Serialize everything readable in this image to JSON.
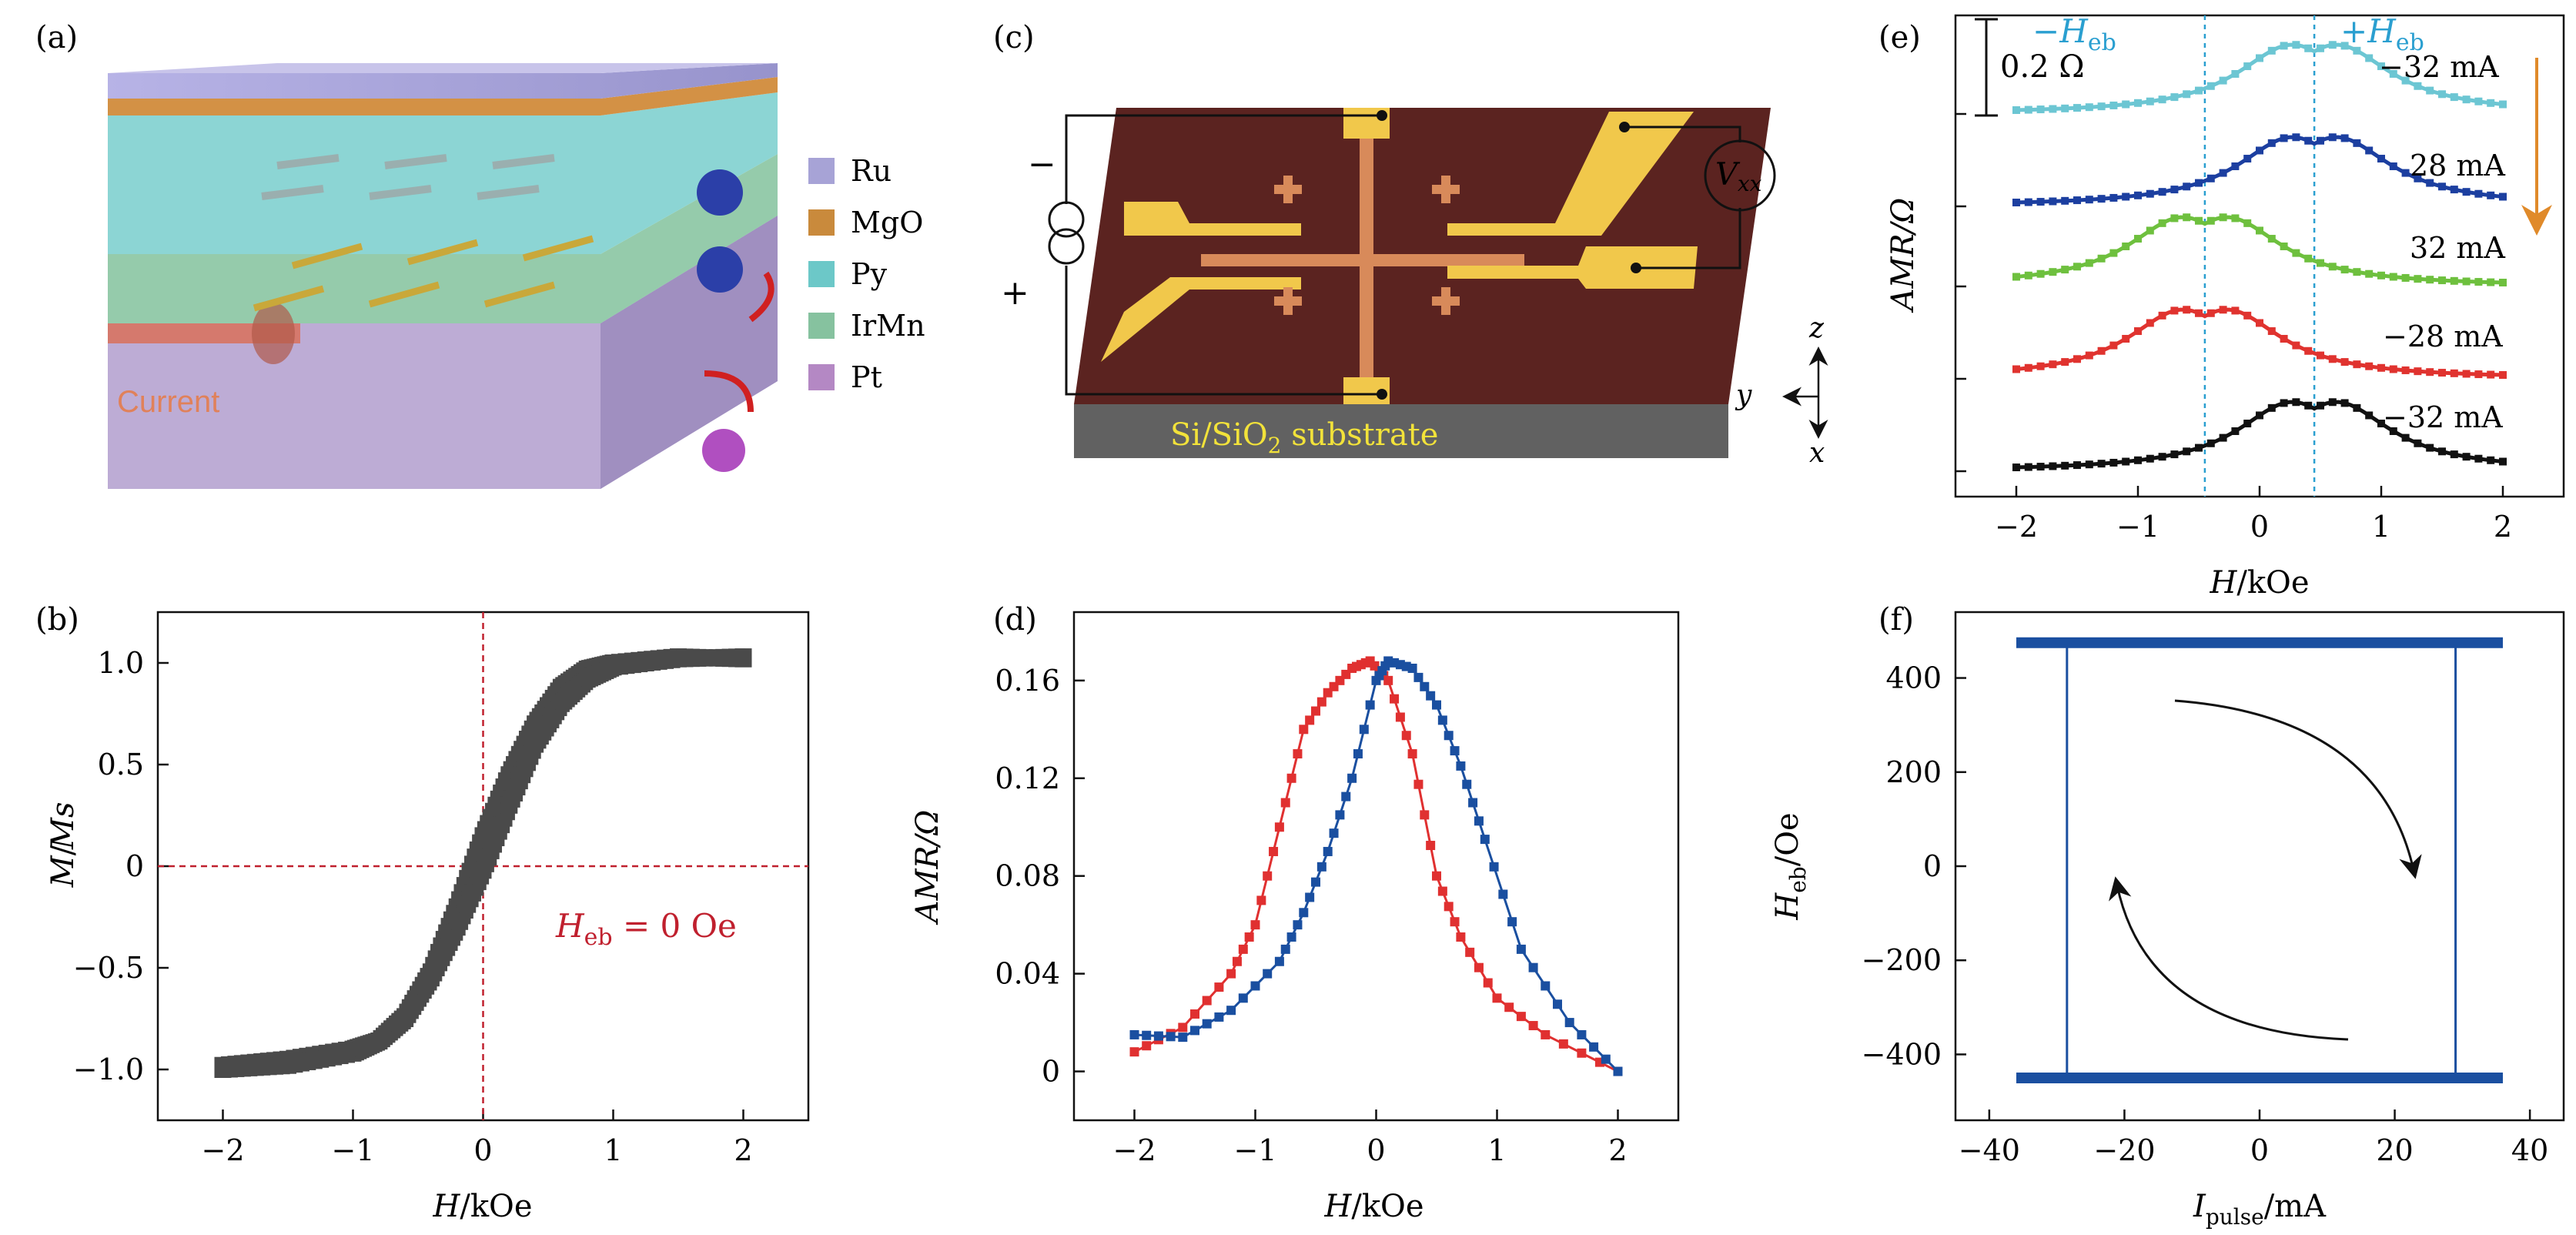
{
  "panels": {
    "a": {
      "label": "(a)",
      "legend": [
        "Ru",
        "MgO",
        "Py",
        "IrMn",
        "Pt"
      ],
      "legend_colors": [
        "#a7a3d6",
        "#c98a3c",
        "#6cc8c8",
        "#86c29f",
        "#b488c4"
      ],
      "current_label": "Current"
    },
    "b": {
      "label": "(b)",
      "annotation_prefix": "H",
      "annotation_sub": "eb",
      "annotation_rest": " = 0 Oe"
    },
    "c": {
      "label": "(c)",
      "substrate_prefix": "Si/SiO",
      "substrate_sub": "2",
      "substrate_rest": " substrate",
      "voltmeter_main": "V",
      "voltmeter_sub": "xx",
      "minus_sign": "−",
      "plus_sign": "+",
      "axis_z": "z",
      "axis_y": "y",
      "axis_x": "x"
    },
    "d": {
      "label": "(d)"
    },
    "e": {
      "label": "(e)",
      "scale_bar": "0.2 Ω",
      "neg_heb_prefix": "−H",
      "pos_heb_prefix": "+H",
      "heb_sub": "eb"
    },
    "f": {
      "label": "(f)"
    }
  },
  "chart_data": [
    {
      "id": "b",
      "type": "scatter",
      "xlabel": "H/kOe",
      "ylabel": "M/Ms",
      "xlim": [
        -2.5,
        2.5
      ],
      "ylim": [
        -1.25,
        1.25
      ],
      "x_ticks": [
        -2,
        -1,
        0,
        1,
        2
      ],
      "x_tick_labels": [
        "−2",
        "−1",
        "0",
        "1",
        "2"
      ],
      "y_ticks": [
        -1.0,
        -0.5,
        0,
        0.5,
        1.0
      ],
      "y_tick_labels": [
        "−1.0",
        "−0.5",
        "0",
        "0.5",
        "1.0"
      ],
      "reference_lines": {
        "x": 0,
        "y": 0
      },
      "series": [
        {
          "branch": "descending",
          "x": [
            2.0,
            1.5,
            1.0,
            0.8,
            0.6,
            0.4,
            0.2,
            0.0,
            -0.2,
            -0.4,
            -0.6,
            -0.8,
            -1.0,
            -1.5,
            -2.0
          ],
          "y": [
            1.02,
            1.03,
            1.0,
            0.97,
            0.88,
            0.7,
            0.45,
            0.15,
            -0.2,
            -0.52,
            -0.74,
            -0.86,
            -0.9,
            -0.95,
            -0.98
          ]
        },
        {
          "branch": "ascending",
          "x": [
            -2.0,
            -1.5,
            -1.0,
            -0.8,
            -0.6,
            -0.4,
            -0.2,
            0.0,
            0.2,
            0.4,
            0.6,
            0.8,
            1.0,
            1.5,
            2.0
          ],
          "y": [
            -1.0,
            -0.98,
            -0.92,
            -0.86,
            -0.75,
            -0.55,
            -0.3,
            -0.02,
            0.3,
            0.6,
            0.8,
            0.92,
            0.98,
            1.02,
            1.03
          ]
        }
      ],
      "color": "#4a4a4a"
    },
    {
      "id": "d",
      "type": "line",
      "xlabel": "H/kOe",
      "ylabel": "AMR/Ω",
      "xlim": [
        -2.5,
        2.5
      ],
      "ylim": [
        -0.02,
        0.188
      ],
      "x_ticks": [
        -2,
        -1,
        0,
        1,
        2
      ],
      "x_tick_labels": [
        "−2",
        "−1",
        "0",
        "1",
        "2"
      ],
      "y_ticks": [
        0,
        0.04,
        0.08,
        0.12,
        0.16
      ],
      "y_tick_labels": [
        "0",
        "0.04",
        "0.08",
        "0.12",
        "0.16"
      ],
      "series": [
        {
          "color": "#e03030",
          "x": [
            -2.0,
            -1.6,
            -1.2,
            -1.0,
            -0.8,
            -0.6,
            -0.4,
            -0.2,
            -0.05,
            0.1,
            0.3,
            0.5,
            0.7,
            1.0,
            1.4,
            2.0
          ],
          "y": [
            0.008,
            0.018,
            0.04,
            0.06,
            0.1,
            0.14,
            0.155,
            0.165,
            0.168,
            0.16,
            0.13,
            0.08,
            0.055,
            0.03,
            0.015,
            0.0
          ]
        },
        {
          "color": "#1a4fa0",
          "x": [
            -2.0,
            -1.6,
            -1.2,
            -0.8,
            -0.6,
            -0.4,
            -0.2,
            0.0,
            0.1,
            0.3,
            0.5,
            0.7,
            0.9,
            1.2,
            1.6,
            2.0
          ],
          "y": [
            0.015,
            0.014,
            0.025,
            0.045,
            0.065,
            0.09,
            0.12,
            0.16,
            0.168,
            0.165,
            0.15,
            0.125,
            0.095,
            0.05,
            0.02,
            0.0
          ]
        }
      ]
    },
    {
      "id": "e",
      "type": "line",
      "xlabel": "H/kOe",
      "ylabel": "AMR/Ω",
      "xlim": [
        -2.5,
        2.5
      ],
      "x_ticks": [
        -2,
        -1,
        0,
        1,
        2
      ],
      "x_tick_labels": [
        "−2",
        "−1",
        "0",
        "1",
        "2"
      ],
      "heb_lines": [
        -0.45,
        0.45
      ],
      "series": [
        {
          "name": "−32 mA",
          "color": "#6cc6d3",
          "center": 0.45
        },
        {
          "name": "28 mA",
          "color": "#1c3fa0",
          "center": 0.45
        },
        {
          "name": "32 mA",
          "color": "#6ec03e",
          "center": -0.45
        },
        {
          "name": "−28 mA",
          "color": "#e0332f",
          "center": -0.45
        },
        {
          "name": "−32 mA",
          "color": "#111111",
          "center": 0.45
        }
      ]
    },
    {
      "id": "f",
      "type": "line",
      "xlabel": "Ipulse/mA",
      "ylabel": "Heb/Oe",
      "xlim": [
        -45,
        45
      ],
      "ylim": [
        -540,
        540
      ],
      "x_ticks": [
        -40,
        -20,
        0,
        20,
        40
      ],
      "x_tick_labels": [
        "−40",
        "−20",
        "0",
        "20",
        "40"
      ],
      "y_ticks": [
        -400,
        -200,
        0,
        200,
        400
      ],
      "y_tick_labels": [
        "−400",
        "−200",
        "0",
        "200",
        "400"
      ],
      "color": "#1a4fa0",
      "loop": {
        "high": 475,
        "low": -450,
        "x_min": -36,
        "x_max": 36,
        "switch_down": -28.5,
        "switch_up": 29
      }
    }
  ]
}
